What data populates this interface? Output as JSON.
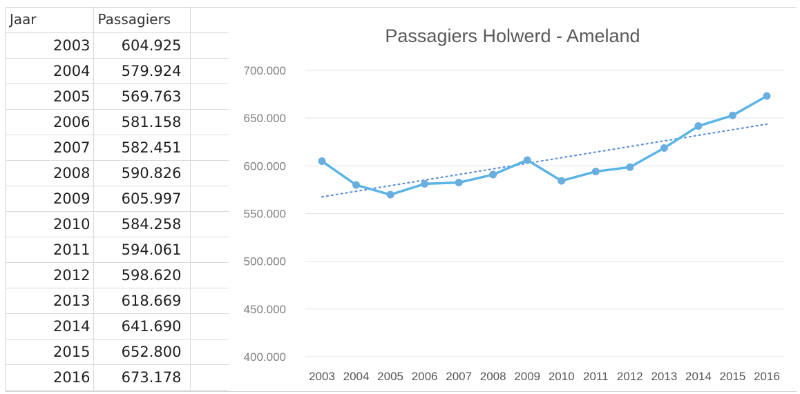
{
  "table": {
    "header": {
      "year": "Jaar",
      "passengers": "Passagiers"
    },
    "rows": [
      {
        "year": "2003",
        "passengers": "604.925"
      },
      {
        "year": "2004",
        "passengers": "579.924"
      },
      {
        "year": "2005",
        "passengers": "569.763"
      },
      {
        "year": "2006",
        "passengers": "581.158"
      },
      {
        "year": "2007",
        "passengers": "582.451"
      },
      {
        "year": "2008",
        "passengers": "590.826"
      },
      {
        "year": "2009",
        "passengers": "605.997"
      },
      {
        "year": "2010",
        "passengers": "584.258"
      },
      {
        "year": "2011",
        "passengers": "594.061"
      },
      {
        "year": "2012",
        "passengers": "598.620"
      },
      {
        "year": "2013",
        "passengers": "618.669"
      },
      {
        "year": "2014",
        "passengers": "641.690"
      },
      {
        "year": "2015",
        "passengers": "652.800"
      },
      {
        "year": "2016",
        "passengers": "673.178"
      }
    ]
  },
  "chart_data": {
    "type": "line",
    "title": "Passagiers Holwerd - Ameland",
    "xlabel": "",
    "ylabel": "",
    "categories": [
      "2003",
      "2004",
      "2005",
      "2006",
      "2007",
      "2008",
      "2009",
      "2010",
      "2011",
      "2012",
      "2013",
      "2014",
      "2015",
      "2016"
    ],
    "series": [
      {
        "values": [
          604925,
          579924,
          569763,
          581158,
          582451,
          590826,
          605997,
          584258,
          594061,
          598620,
          618669,
          641690,
          652800,
          673178
        ],
        "color": "#5ab4e5",
        "marker_color": "#6aaee0"
      }
    ],
    "trendline": {
      "type": "linear",
      "style": "dotted",
      "color": "#5b8fd9"
    },
    "ylim": [
      400000,
      700000
    ],
    "yticks": [
      400000,
      450000,
      500000,
      550000,
      600000,
      650000,
      700000
    ],
    "ytick_labels": [
      "400.000",
      "450.000",
      "500.000",
      "550.000",
      "600.000",
      "650.000",
      "700.000"
    ],
    "grid": true,
    "legend": "none"
  }
}
